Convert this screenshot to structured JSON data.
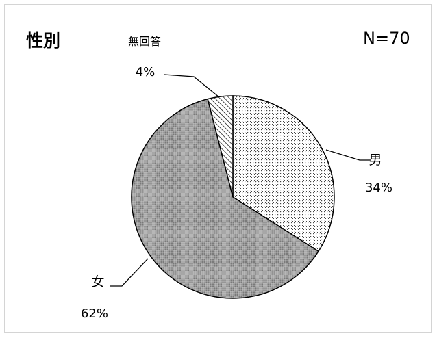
{
  "title": "性別",
  "sample_size": "N=70",
  "chart_data": {
    "type": "pie",
    "title": "性別",
    "annotation": "N=70",
    "slices": [
      {
        "label": "男",
        "value": 34,
        "percent": "34%",
        "pattern": "dots"
      },
      {
        "label": "女",
        "value": 62,
        "percent": "62%",
        "pattern": "checker"
      },
      {
        "label": "無回答",
        "value": 4,
        "percent": "4%",
        "pattern": "hatch"
      }
    ],
    "start_angle_deg": 0,
    "direction": "clockwise",
    "legend": "none"
  }
}
